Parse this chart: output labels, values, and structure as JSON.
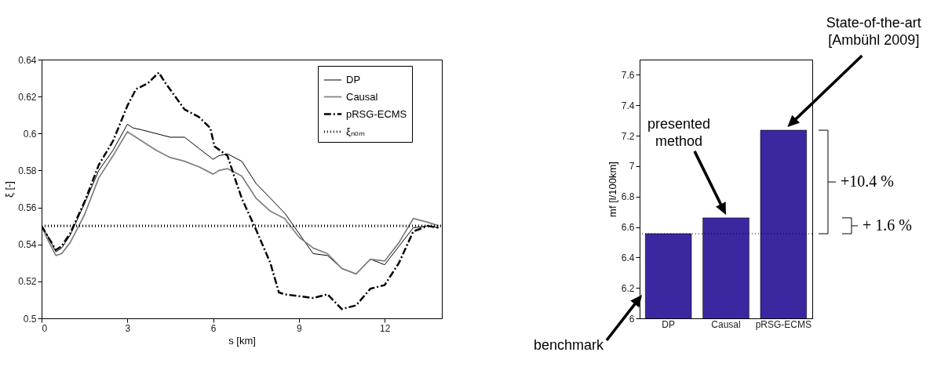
{
  "chart_data": [
    {
      "type": "line",
      "xlabel": "s [km]",
      "ylabel": "ξ [-]",
      "xlim": [
        0,
        14
      ],
      "xticks": [
        0,
        3,
        6,
        9,
        12
      ],
      "ylim": [
        0.5,
        0.64
      ],
      "yticks": [
        0.5,
        0.52,
        0.54,
        0.56,
        0.58,
        0.6,
        0.62,
        0.64
      ],
      "grid": false,
      "legend": "top right",
      "series": [
        {
          "name": "DP",
          "color": "#000000",
          "line_style": "solid",
          "x": [
            0,
            0.2,
            0.5,
            0.7,
            1.0,
            1.5,
            2.0,
            2.5,
            3.0,
            3.2,
            3.5,
            4.0,
            4.5,
            5.0,
            5.5,
            6.0,
            6.2,
            6.5,
            7.0,
            7.5,
            8.0,
            8.5,
            9.0,
            9.5,
            10.0,
            10.5,
            11.0,
            11.5,
            12.0,
            12.5,
            13.0,
            13.5,
            13.9
          ],
          "values": [
            0.55,
            0.545,
            0.536,
            0.538,
            0.545,
            0.562,
            0.58,
            0.591,
            0.605,
            0.603,
            0.602,
            0.6,
            0.598,
            0.598,
            0.592,
            0.586,
            0.588,
            0.589,
            0.585,
            0.573,
            0.565,
            0.557,
            0.546,
            0.535,
            0.534,
            0.527,
            0.524,
            0.532,
            0.529,
            0.539,
            0.549,
            0.55,
            0.549
          ]
        },
        {
          "name": "Causal",
          "color": "#808080",
          "line_style": "solid",
          "x": [
            0,
            0.2,
            0.5,
            0.7,
            1.0,
            1.5,
            2.0,
            2.5,
            3.0,
            3.5,
            4.0,
            4.5,
            5.0,
            5.5,
            6.0,
            6.2,
            6.5,
            7.0,
            7.5,
            8.0,
            8.5,
            9.0,
            9.5,
            10.0,
            10.5,
            11.0,
            11.5,
            12.0,
            12.5,
            13.0,
            13.5,
            13.9
          ],
          "values": [
            0.55,
            0.543,
            0.534,
            0.535,
            0.541,
            0.556,
            0.576,
            0.588,
            0.601,
            0.596,
            0.591,
            0.587,
            0.585,
            0.582,
            0.578,
            0.58,
            0.581,
            0.577,
            0.565,
            0.558,
            0.554,
            0.544,
            0.538,
            0.535,
            0.527,
            0.524,
            0.532,
            0.531,
            0.541,
            0.554,
            0.552,
            0.55
          ]
        },
        {
          "name": "pRSG-ECMS",
          "color": "#000000",
          "line_style": "dashed",
          "x": [
            0,
            0.5,
            0.7,
            1.0,
            1.5,
            2.0,
            2.5,
            3.0,
            3.3,
            3.7,
            4.1,
            4.3,
            5.0,
            5.5,
            5.9,
            6.05,
            6.5,
            6.8,
            7.0,
            7.5,
            8.0,
            8.3,
            8.5,
            9.0,
            9.5,
            10.0,
            10.5,
            11.0,
            11.5,
            12.0,
            12.5,
            13.0,
            13.5,
            13.9
          ],
          "values": [
            0.55,
            0.537,
            0.539,
            0.546,
            0.563,
            0.583,
            0.596,
            0.615,
            0.624,
            0.627,
            0.633,
            0.628,
            0.613,
            0.609,
            0.603,
            0.593,
            0.588,
            0.574,
            0.565,
            0.548,
            0.53,
            0.514,
            0.513,
            0.512,
            0.511,
            0.513,
            0.505,
            0.507,
            0.516,
            0.518,
            0.53,
            0.547,
            0.55,
            0.549
          ]
        },
        {
          "name": "ξₙₒₘ",
          "color": "#000000",
          "line_style": "dotted",
          "x": [
            0,
            14
          ],
          "values": [
            0.55,
            0.55
          ]
        }
      ]
    },
    {
      "type": "bar",
      "categories": [
        "DP",
        "Causal",
        "pRSG-ECMS"
      ],
      "values": [
        6.556,
        6.66,
        7.236
      ],
      "color": "#3b28a0",
      "ylabel": "mf [l/100km]",
      "ylim": [
        6,
        7.7
      ],
      "yticks": [
        6,
        6.2,
        6.4,
        6.6,
        6.8,
        7,
        7.2,
        7.4,
        7.6
      ],
      "grid": false,
      "ref_lines": [
        {
          "axis": "y",
          "value": 6.556,
          "line_style": "dotted",
          "color": "#000000"
        }
      ],
      "annotations": [
        "benchmark",
        "presented method",
        "State-of-the-art [Ambühl 2009]",
        "+10.4 %",
        "+ 1.6 %"
      ]
    }
  ]
}
